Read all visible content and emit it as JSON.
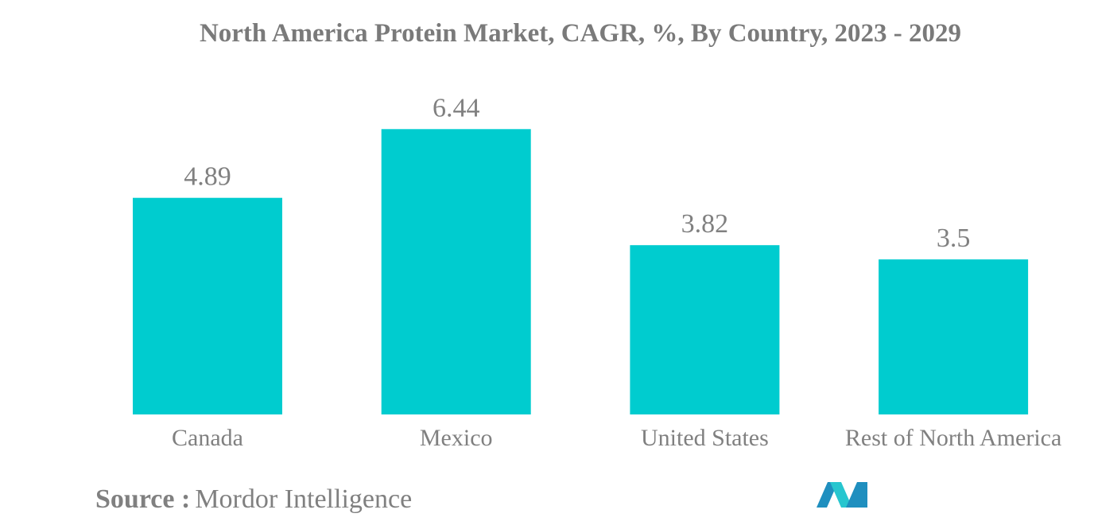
{
  "colors": {
    "bar": "#00cccf",
    "text": "#808080",
    "title": "#7a7a7a",
    "logo_dark": "#1f8fbf",
    "logo_light": "#27c6cf"
  },
  "chart_data": {
    "type": "bar",
    "title": "North America Protein Market, CAGR, %, By Country, 2023 - 2029",
    "categories": [
      "Canada",
      "Mexico",
      "United States",
      "Rest of North America"
    ],
    "values": [
      4.89,
      6.44,
      3.82,
      3.5
    ],
    "data_labels": [
      "4.89",
      "6.44",
      "3.82",
      "3.5"
    ],
    "xlabel": "",
    "ylabel": "",
    "ylim": [
      0,
      7.2
    ],
    "grid": false,
    "legend": "none"
  },
  "source": {
    "prefix": "Source :",
    "name": "Mordor Intelligence"
  },
  "logo": {
    "icon": "mordor-intelligence-logo-icon"
  }
}
